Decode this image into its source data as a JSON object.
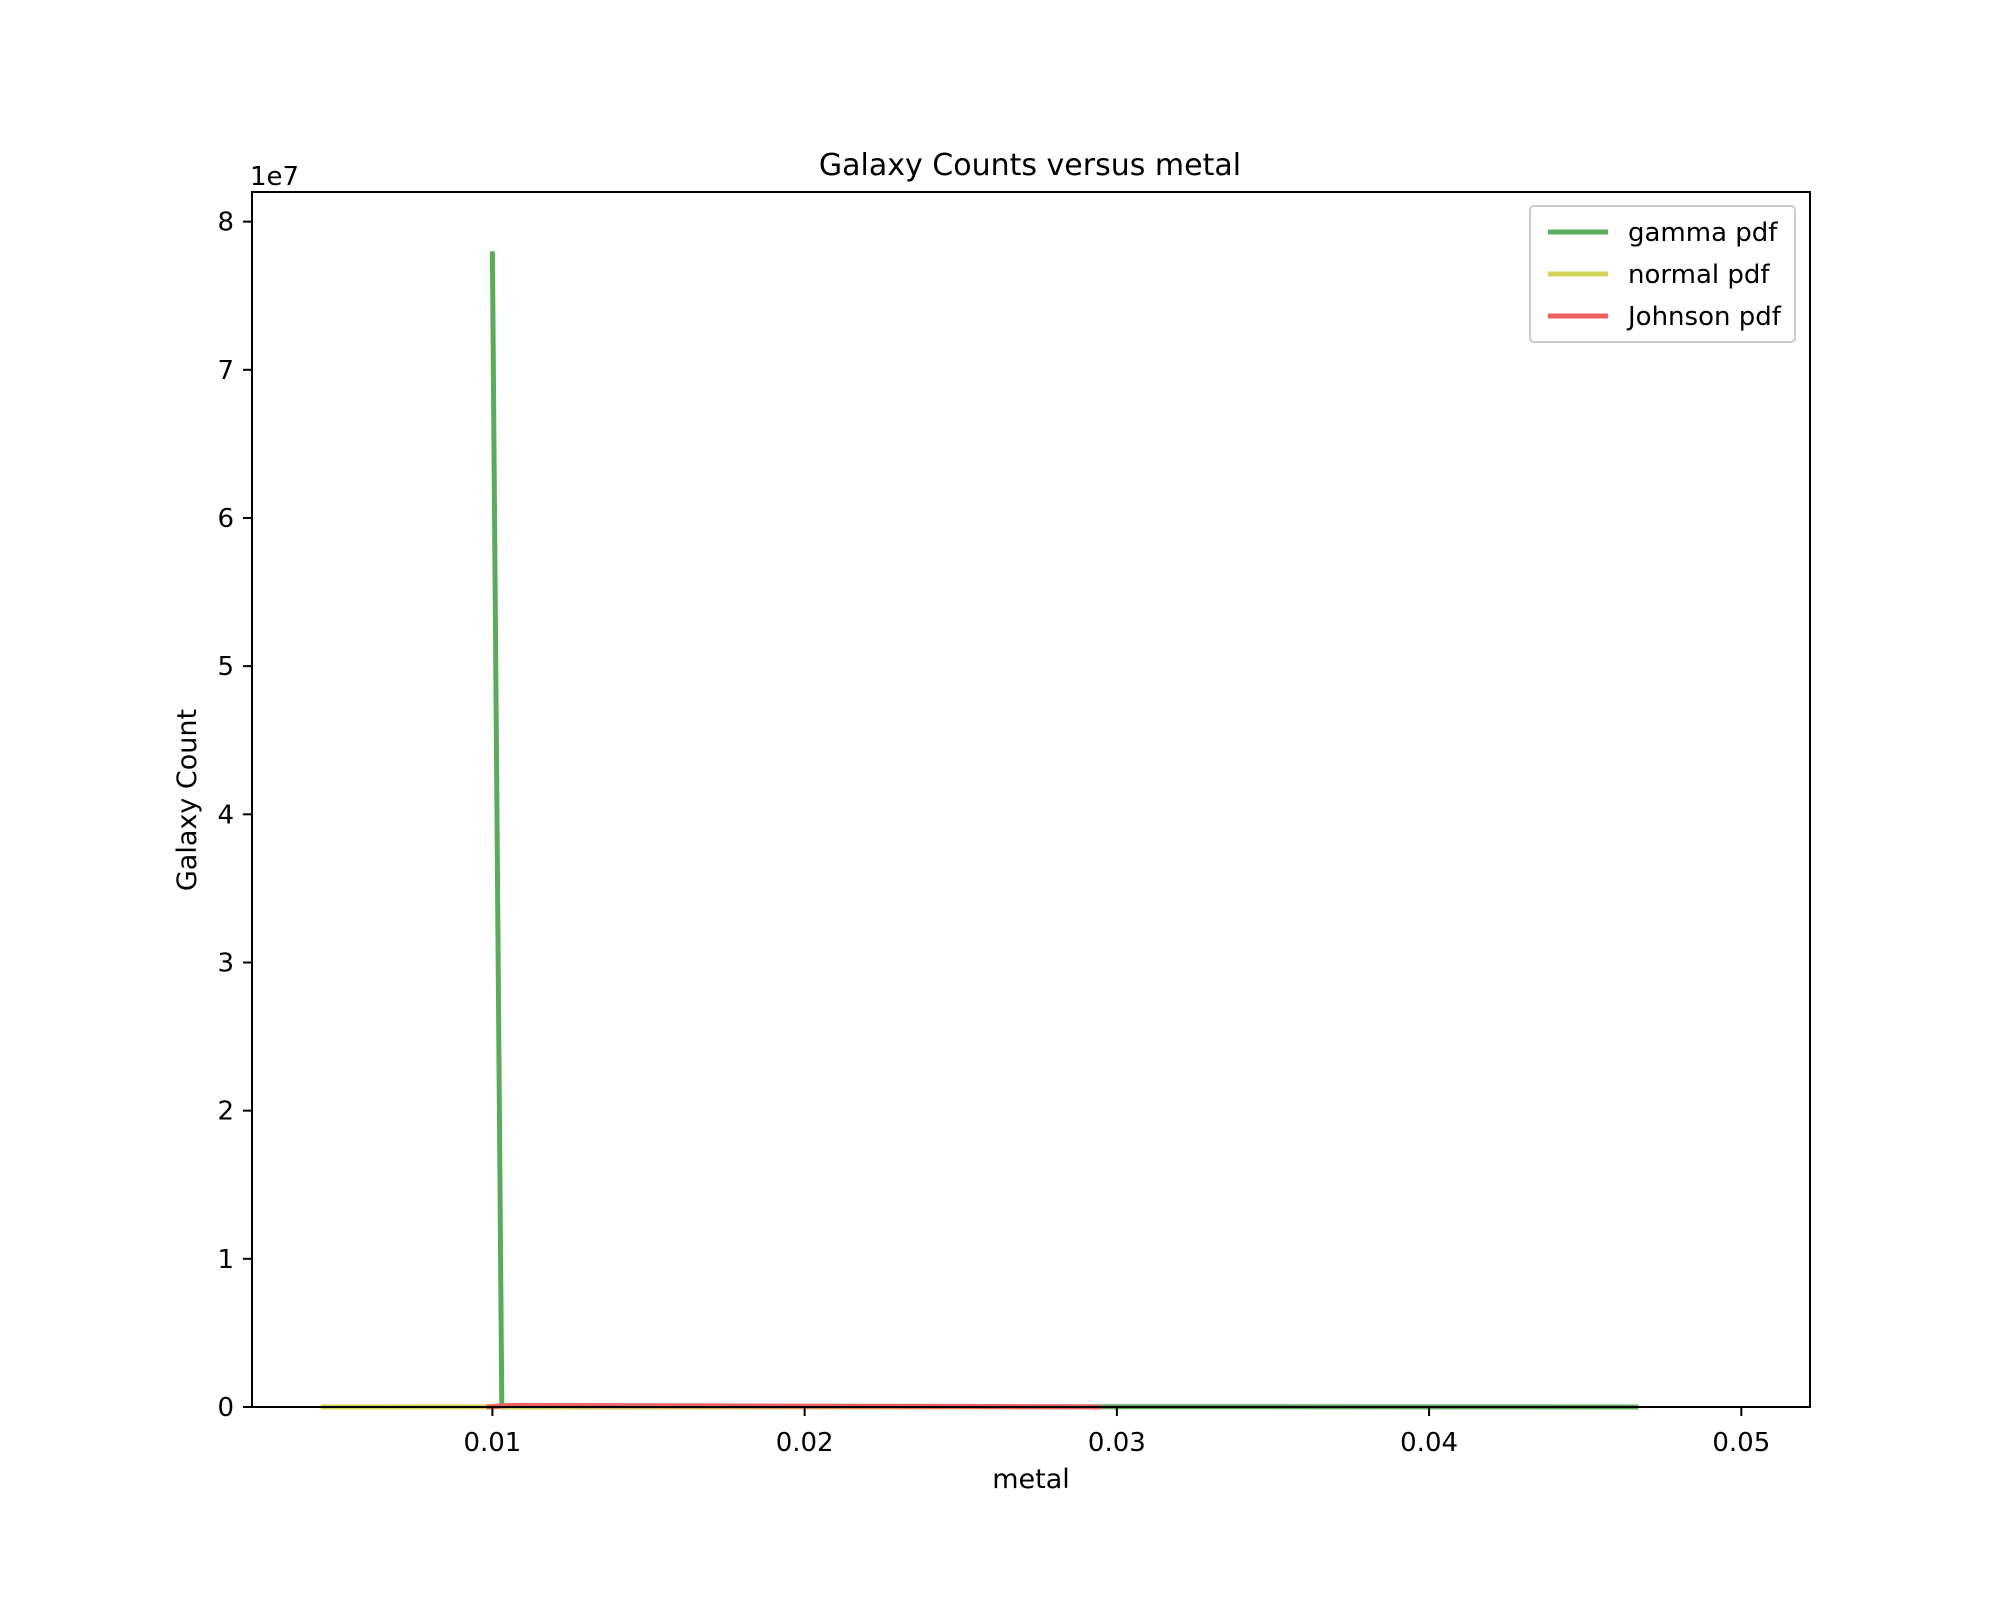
{
  "chart_data": {
    "type": "line",
    "title": "Galaxy Counts versus metal",
    "xlabel": "metal",
    "ylabel": "Galaxy Count",
    "y_offset_label": "1e7",
    "y_multiplier": 10000000,
    "xlim": [
      0.0023,
      0.0522
    ],
    "ylim": [
      0,
      8.2
    ],
    "x_ticks": [
      {
        "value": 0.01,
        "label": "0.01"
      },
      {
        "value": 0.02,
        "label": "0.02"
      },
      {
        "value": 0.03,
        "label": "0.03"
      },
      {
        "value": 0.04,
        "label": "0.04"
      },
      {
        "value": 0.05,
        "label": "0.05"
      }
    ],
    "y_ticks": [
      {
        "value": 0,
        "label": "0"
      },
      {
        "value": 1,
        "label": "1"
      },
      {
        "value": 2,
        "label": "2"
      },
      {
        "value": 3,
        "label": "3"
      },
      {
        "value": 4,
        "label": "4"
      },
      {
        "value": 5,
        "label": "5"
      },
      {
        "value": 6,
        "label": "6"
      },
      {
        "value": 7,
        "label": "7"
      },
      {
        "value": 8,
        "label": "8"
      }
    ],
    "grid": false,
    "legend_position": "top-right",
    "series": [
      {
        "name": "gamma pdf",
        "color": "#5aab5a",
        "points": [
          [
            0.01,
            7.8
          ],
          [
            0.0103,
            0.0
          ],
          [
            0.03,
            0.002
          ],
          [
            0.0467,
            0.0
          ]
        ]
      },
      {
        "name": "normal pdf",
        "color": "#d4d45a",
        "points": [
          [
            0.0045,
            0.0
          ],
          [
            0.0095,
            0.001
          ],
          [
            0.0105,
            0.001
          ],
          [
            0.028,
            0.0
          ]
        ]
      },
      {
        "name": "Johnson pdf",
        "color": "#f06060",
        "points": [
          [
            0.0098,
            0.0
          ],
          [
            0.0105,
            0.01
          ],
          [
            0.015,
            0.008
          ],
          [
            0.02,
            0.006
          ],
          [
            0.025,
            0.004
          ],
          [
            0.0295,
            0.0
          ]
        ]
      }
    ]
  }
}
